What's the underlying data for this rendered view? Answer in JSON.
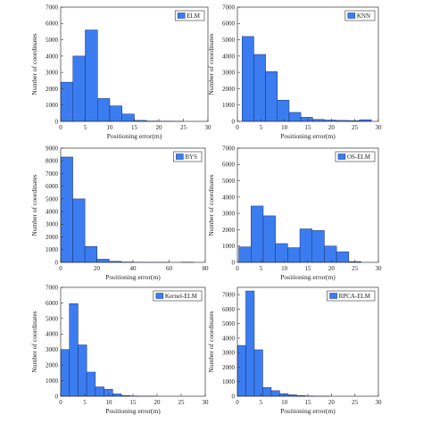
{
  "chart_data": [
    {
      "type": "bar",
      "legend": "ELM",
      "legend_position": "top-right",
      "xlabel": "Positioning error(m)",
      "ylabel": "Number of coordinates",
      "xlim": [
        0,
        30
      ],
      "ylim": [
        0,
        7000
      ],
      "xticks": [
        "0",
        "5",
        "10",
        "15",
        "20",
        "25",
        "30"
      ],
      "yticks": [
        "0",
        "1000",
        "2000",
        "3000",
        "4000",
        "5000",
        "6000",
        "7000"
      ],
      "bin_width": 2.5,
      "bin_start": 0,
      "values": [
        2400,
        4000,
        5600,
        1400,
        950,
        450,
        60,
        20,
        10,
        5,
        0,
        0
      ],
      "color": "#3b7df0",
      "grid": false
    },
    {
      "type": "bar",
      "legend": "KNN",
      "legend_position": "top-right",
      "xlabel": "Positioning error(m)",
      "ylabel": "Number of coordinates",
      "xlim": [
        0,
        30
      ],
      "ylim": [
        0,
        7000
      ],
      "xticks": [
        "0",
        "5",
        "10",
        "15",
        "20",
        "25",
        "30"
      ],
      "yticks": [
        "0",
        "1000",
        "2000",
        "3000",
        "4000",
        "5000",
        "6000",
        "7000"
      ],
      "bin_width": 2.5,
      "bin_start": 1,
      "values": [
        5200,
        4100,
        3050,
        1300,
        550,
        250,
        120,
        80,
        60,
        50,
        100
      ],
      "color": "#3b7df0",
      "grid": false
    },
    {
      "type": "bar",
      "legend": "BYS",
      "legend_position": "top-right",
      "xlabel": "Positioning error(m)",
      "ylabel": "Number of coordinates",
      "xlim": [
        0,
        80
      ],
      "ylim": [
        0,
        9000
      ],
      "xticks": [
        "0",
        "20",
        "40",
        "60",
        "80"
      ],
      "yticks": [
        "0",
        "1000",
        "2000",
        "3000",
        "4000",
        "5000",
        "6000",
        "7000",
        "8000",
        "9000"
      ],
      "bin_width": 6.7,
      "bin_start": 0,
      "values": [
        8300,
        5000,
        1250,
        250,
        80,
        30,
        10,
        5,
        5,
        0,
        20
      ],
      "color": "#3b7df0",
      "grid": false
    },
    {
      "type": "bar",
      "legend": "OS-ELM",
      "legend_position": "top-right",
      "xlabel": "Positioning error(m)",
      "ylabel": "Number of coordinates",
      "xlim": [
        0,
        30
      ],
      "ylim": [
        0,
        7000
      ],
      "xticks": [
        "0",
        "5",
        "10",
        "15",
        "20",
        "25",
        "30"
      ],
      "yticks": [
        "0",
        "1000",
        "2000",
        "3000",
        "4000",
        "5000",
        "6000",
        "7000"
      ],
      "bin_width": 2.6,
      "bin_start": 0.3,
      "values": [
        950,
        3450,
        2850,
        1150,
        900,
        2050,
        1950,
        1000,
        650,
        50
      ],
      "color": "#3b7df0",
      "grid": false
    },
    {
      "type": "bar",
      "legend": "Kernel-ELM",
      "legend_position": "top-right",
      "xlabel": "Positioning error(m)",
      "ylabel": "Number of coordinates",
      "xlim": [
        0,
        30
      ],
      "ylim": [
        0,
        7000
      ],
      "xticks": [
        "0",
        "5",
        "10",
        "15",
        "20",
        "25",
        "30"
      ],
      "yticks": [
        "0",
        "1000",
        "2000",
        "3000",
        "4000",
        "5000",
        "6000",
        "7000"
      ],
      "bin_width": 1.8,
      "bin_start": 0,
      "values": [
        3000,
        5950,
        3300,
        1550,
        600,
        450,
        150,
        40,
        20,
        10,
        5
      ],
      "color": "#3b7df0",
      "grid": false
    },
    {
      "type": "bar",
      "legend": "RPCA-ELM",
      "legend_position": "top-right",
      "xlabel": "Positioning error(m)",
      "ylabel": "Number of coordinates",
      "xlim": [
        0,
        30
      ],
      "ylim": [
        0,
        7500
      ],
      "xticks": [
        "0",
        "5",
        "10",
        "15",
        "20",
        "25",
        "30"
      ],
      "yticks": [
        "0",
        "1000",
        "2000",
        "3000",
        "4000",
        "5000",
        "6000",
        "7000"
      ],
      "bin_width": 1.8,
      "bin_start": 0,
      "values": [
        3500,
        7250,
        3200,
        600,
        380,
        180,
        100,
        50,
        20,
        10,
        5
      ],
      "color": "#3b7df0",
      "grid": false
    }
  ]
}
